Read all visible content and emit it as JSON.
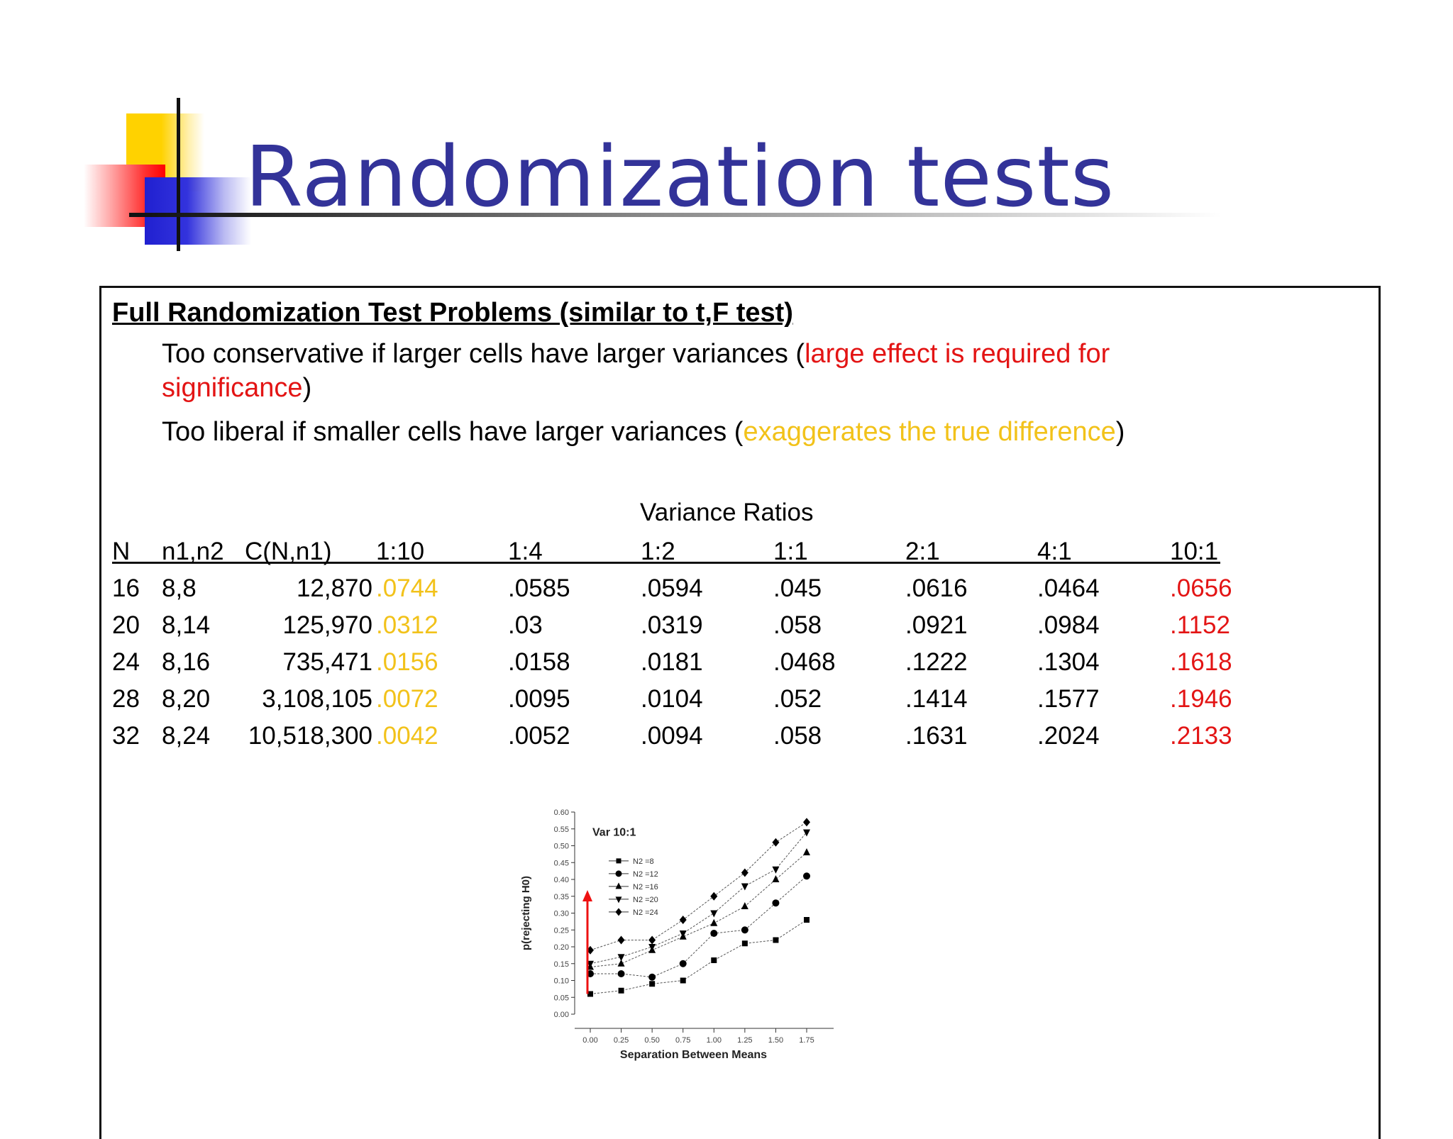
{
  "slide": {
    "title": "Randomization tests",
    "heading": "Full Randomization Test Problems (similar to t,F test)",
    "bullet1": {
      "text": "Too conservative if larger cells have larger variances (",
      "highlight_a": "large effect is required for",
      "highlight_b": "significance",
      "close": ")"
    },
    "bullet2": {
      "text": "Too liberal if smaller cells have larger variances (",
      "highlight": "exaggerates the true difference",
      "close": ")"
    }
  },
  "table": {
    "caption": "Variance Ratios",
    "headers": [
      "N",
      "n1,n2",
      "C(N,n1)",
      "1:10",
      "1:4",
      "1:2",
      "1:1",
      "2:1",
      "4:1",
      "10:1"
    ],
    "rows": [
      [
        "16",
        "8,8",
        "12,870",
        ".0744",
        ".0585",
        ".0594",
        ".045",
        ".0616",
        ".0464",
        ".0656"
      ],
      [
        "20",
        "8,14",
        "125,970",
        ".0312",
        ".03",
        ".0319",
        ".058",
        ".0921",
        ".0984",
        ".1152"
      ],
      [
        "24",
        "8,16",
        "735,471",
        ".0156",
        ".0158",
        ".0181",
        ".0468",
        ".1222",
        ".1304",
        ".1618"
      ],
      [
        "28",
        "8,20",
        "3,108,105",
        ".0072",
        ".0095",
        ".0104",
        ".052",
        ".1414",
        ".1577",
        ".1946"
      ],
      [
        "32",
        "8,24",
        "10,518,300",
        ".0042",
        ".0052",
        ".0094",
        ".058",
        ".1631",
        ".2024",
        ".2133"
      ]
    ],
    "colors": {
      "col_1_10": "#f2c21a",
      "col_10_1": "#e31414"
    }
  },
  "chart_data": {
    "type": "line",
    "title": "Var 10:1",
    "xlabel": "Separation Between Means",
    "ylabel": "p(rejecting H0)",
    "x": [
      0.0,
      0.25,
      0.5,
      0.75,
      1.0,
      1.25,
      1.5,
      1.75
    ],
    "x_tick_labels": [
      "0.00",
      "0.25",
      "0.50",
      "0.75",
      "1.00",
      "1.25",
      "1.50",
      "1.75"
    ],
    "y_tick_labels": [
      "0.00",
      "0.05",
      "0.10",
      "0.15",
      "0.20",
      "0.25",
      "0.30",
      "0.35",
      "0.40",
      "0.45",
      "0.50",
      "0.55",
      "0.60"
    ],
    "xlim": [
      0,
      1.75
    ],
    "ylim": [
      0,
      0.6
    ],
    "legend_position": "top-left",
    "series": [
      {
        "name": "N2 =8",
        "marker": "square",
        "values": [
          0.06,
          0.07,
          0.09,
          0.1,
          0.16,
          0.21,
          0.22,
          0.28
        ]
      },
      {
        "name": "N2 =12",
        "marker": "circle",
        "values": [
          0.12,
          0.12,
          0.11,
          0.15,
          0.24,
          0.25,
          0.33,
          0.41
        ]
      },
      {
        "name": "N2 =16",
        "marker": "triangle-up",
        "values": [
          0.14,
          0.15,
          0.19,
          0.23,
          0.27,
          0.32,
          0.4,
          0.48
        ]
      },
      {
        "name": "N2 =20",
        "marker": "triangle-down",
        "values": [
          0.15,
          0.17,
          0.2,
          0.24,
          0.3,
          0.38,
          0.43,
          0.54
        ]
      },
      {
        "name": "N2 =24",
        "marker": "diamond",
        "values": [
          0.19,
          0.22,
          0.22,
          0.28,
          0.35,
          0.42,
          0.51,
          0.57
        ]
      }
    ],
    "arrow": {
      "x": 0.0,
      "from_y": 0.06,
      "to_y": 0.36,
      "color": "#ee1111"
    }
  }
}
